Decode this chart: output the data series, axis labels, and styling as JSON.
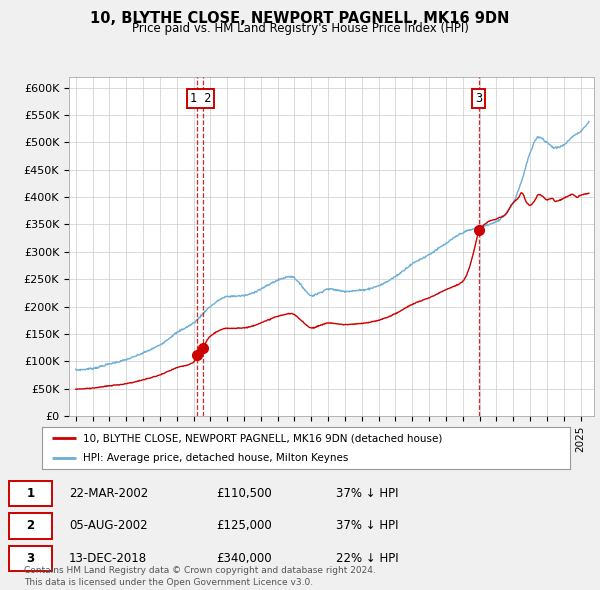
{
  "title": "10, BLYTHE CLOSE, NEWPORT PAGNELL, MK16 9DN",
  "subtitle": "Price paid vs. HM Land Registry's House Price Index (HPI)",
  "ylabel_ticks": [
    "£0",
    "£50K",
    "£100K",
    "£150K",
    "£200K",
    "£250K",
    "£300K",
    "£350K",
    "£400K",
    "£450K",
    "£500K",
    "£550K",
    "£600K"
  ],
  "ylim": [
    0,
    620000
  ],
  "ytick_values": [
    0,
    50000,
    100000,
    150000,
    200000,
    250000,
    300000,
    350000,
    400000,
    450000,
    500000,
    550000,
    600000
  ],
  "sale_color": "#cc0000",
  "hpi_color": "#6baed6",
  "vline_color": "#cc0000",
  "annotation_box_color": "#cc0000",
  "sale_dates_num": [
    2002.22,
    2002.59,
    2018.95
  ],
  "sale_prices": [
    110500,
    125000,
    340000
  ],
  "sale_labels": [
    "1",
    "2",
    "3"
  ],
  "vline_dates": [
    2002.22,
    2002.59,
    2018.95
  ],
  "legend_sale_label": "10, BLYTHE CLOSE, NEWPORT PAGNELL, MK16 9DN (detached house)",
  "legend_hpi_label": "HPI: Average price, detached house, Milton Keynes",
  "table_rows": [
    [
      "1",
      "22-MAR-2002",
      "£110,500",
      "37% ↓ HPI"
    ],
    [
      "2",
      "05-AUG-2002",
      "£125,000",
      "37% ↓ HPI"
    ],
    [
      "3",
      "13-DEC-2018",
      "£340,000",
      "22% ↓ HPI"
    ]
  ],
  "footer": "Contains HM Land Registry data © Crown copyright and database right 2024.\nThis data is licensed under the Open Government Licence v3.0.",
  "bg_color": "#f0f0f0",
  "plot_bg_color": "#ffffff",
  "hpi_keypoints": [
    [
      1995.0,
      84000
    ],
    [
      1996.0,
      87000
    ],
    [
      1997.0,
      95000
    ],
    [
      1998.0,
      103000
    ],
    [
      1999.0,
      115000
    ],
    [
      2000.0,
      130000
    ],
    [
      2001.0,
      152000
    ],
    [
      2002.0,
      170000
    ],
    [
      2003.0,
      200000
    ],
    [
      2004.0,
      218000
    ],
    [
      2005.0,
      220000
    ],
    [
      2006.0,
      232000
    ],
    [
      2007.0,
      248000
    ],
    [
      2007.8,
      255000
    ],
    [
      2008.5,
      235000
    ],
    [
      2009.0,
      220000
    ],
    [
      2009.5,
      225000
    ],
    [
      2010.0,
      232000
    ],
    [
      2011.0,
      228000
    ],
    [
      2012.0,
      230000
    ],
    [
      2013.0,
      238000
    ],
    [
      2014.0,
      255000
    ],
    [
      2015.0,
      278000
    ],
    [
      2016.0,
      295000
    ],
    [
      2017.0,
      315000
    ],
    [
      2018.0,
      335000
    ],
    [
      2019.0,
      345000
    ],
    [
      2020.0,
      355000
    ],
    [
      2021.0,
      390000
    ],
    [
      2021.5,
      430000
    ],
    [
      2022.0,
      480000
    ],
    [
      2022.5,
      510000
    ],
    [
      2023.0,
      500000
    ],
    [
      2023.5,
      490000
    ],
    [
      2024.0,
      495000
    ],
    [
      2024.5,
      510000
    ],
    [
      2025.0,
      520000
    ],
    [
      2025.3,
      530000
    ]
  ],
  "red_keypoints_pre": [
    [
      1995.0,
      49000
    ],
    [
      1996.0,
      51000
    ],
    [
      1997.0,
      55000
    ],
    [
      1998.0,
      59000
    ],
    [
      1999.0,
      66000
    ],
    [
      2000.0,
      75000
    ],
    [
      2001.0,
      88000
    ],
    [
      2002.0,
      98000
    ],
    [
      2002.22,
      110500
    ]
  ],
  "red_keypoints_mid": [
    [
      2002.59,
      125000
    ],
    [
      2003.0,
      146000
    ],
    [
      2004.0,
      160000
    ],
    [
      2005.0,
      161000
    ],
    [
      2006.0,
      170000
    ],
    [
      2007.0,
      182000
    ],
    [
      2007.8,
      187000
    ],
    [
      2008.5,
      172000
    ],
    [
      2009.0,
      161000
    ],
    [
      2009.5,
      165000
    ],
    [
      2010.0,
      170000
    ],
    [
      2011.0,
      167000
    ],
    [
      2012.0,
      169000
    ],
    [
      2013.0,
      175000
    ],
    [
      2014.0,
      187000
    ],
    [
      2015.0,
      204000
    ],
    [
      2016.0,
      216000
    ],
    [
      2017.0,
      231000
    ],
    [
      2018.0,
      246000
    ],
    [
      2018.95,
      340000
    ]
  ],
  "red_keypoints_post": [
    [
      2018.95,
      340000
    ],
    [
      2019.0,
      341000
    ],
    [
      2019.5,
      355000
    ],
    [
      2020.0,
      360000
    ],
    [
      2020.5,
      367000
    ],
    [
      2021.0,
      390000
    ],
    [
      2021.3,
      398000
    ],
    [
      2021.5,
      408000
    ],
    [
      2021.8,
      390000
    ],
    [
      2022.0,
      385000
    ],
    [
      2022.3,
      395000
    ],
    [
      2022.5,
      405000
    ],
    [
      2022.8,
      400000
    ],
    [
      2023.0,
      395000
    ],
    [
      2023.3,
      398000
    ],
    [
      2023.5,
      392000
    ],
    [
      2023.8,
      395000
    ],
    [
      2024.0,
      398000
    ],
    [
      2024.3,
      402000
    ],
    [
      2024.5,
      405000
    ],
    [
      2024.8,
      400000
    ],
    [
      2025.0,
      403000
    ],
    [
      2025.3,
      406000
    ]
  ]
}
